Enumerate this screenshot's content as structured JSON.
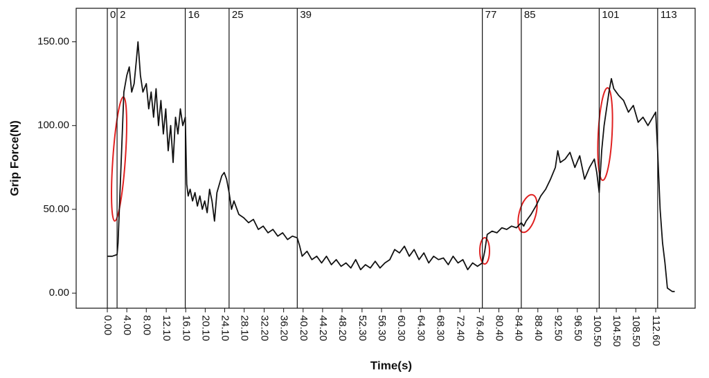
{
  "chart_data": {
    "type": "line",
    "xlabel": "Time(s)",
    "ylabel": "Grip Force(N)",
    "xlim": [
      -6.4,
      120.7
    ],
    "ylim": [
      -9,
      170
    ],
    "xticks": [
      {
        "value": 0,
        "label": "0.00"
      },
      {
        "value": 4,
        "label": "4.00"
      },
      {
        "value": 8,
        "label": "8.00"
      },
      {
        "value": 12.1,
        "label": "12.10"
      },
      {
        "value": 16.1,
        "label": "16.10"
      },
      {
        "value": 20.1,
        "label": "20.10"
      },
      {
        "value": 24.1,
        "label": "24.10"
      },
      {
        "value": 28.1,
        "label": "28.10"
      },
      {
        "value": 32.2,
        "label": "32.20"
      },
      {
        "value": 36.2,
        "label": "36.20"
      },
      {
        "value": 40.2,
        "label": "40.20"
      },
      {
        "value": 44.2,
        "label": "44.20"
      },
      {
        "value": 48.2,
        "label": "48.20"
      },
      {
        "value": 52.3,
        "label": "52.30"
      },
      {
        "value": 56.3,
        "label": "56.30"
      },
      {
        "value": 60.3,
        "label": "60.30"
      },
      {
        "value": 64.3,
        "label": "64.30"
      },
      {
        "value": 68.3,
        "label": "68.30"
      },
      {
        "value": 72.4,
        "label": "72.40"
      },
      {
        "value": 76.4,
        "label": "76.40"
      },
      {
        "value": 80.4,
        "label": "80.40"
      },
      {
        "value": 84.4,
        "label": "84.40"
      },
      {
        "value": 88.4,
        "label": "88.40"
      },
      {
        "value": 92.5,
        "label": "92.50"
      },
      {
        "value": 96.5,
        "label": "96.50"
      },
      {
        "value": 100.5,
        "label": "100.50"
      },
      {
        "value": 104.5,
        "label": "104.50"
      },
      {
        "value": 108.5,
        "label": "108.50"
      },
      {
        "value": 112.6,
        "label": "112.60"
      }
    ],
    "yticks": [
      {
        "value": 0,
        "label": "0.00"
      },
      {
        "value": 50,
        "label": "50.00"
      },
      {
        "value": 100,
        "label": "100.00"
      },
      {
        "value": 150,
        "label": "150.00"
      }
    ],
    "vlines": [
      0,
      2,
      16,
      25,
      39,
      77,
      85,
      101,
      113
    ],
    "x": [
      0,
      1,
      2,
      2.2,
      2.6,
      3,
      3.4,
      4,
      4.5,
      5,
      5.5,
      6,
      6.3,
      6.8,
      7.3,
      8,
      8.5,
      9,
      9.5,
      10,
      10.5,
      11,
      11.5,
      12,
      12.5,
      13,
      13.5,
      14,
      14.5,
      15,
      15.5,
      16,
      16.3,
      16.6,
      17,
      17.5,
      18,
      18.5,
      19,
      19.5,
      20,
      20.5,
      21,
      21.5,
      22,
      22.5,
      23,
      23.5,
      24,
      24.5,
      25,
      25.5,
      26,
      27,
      28,
      29,
      30,
      31,
      32,
      33,
      34,
      35,
      36,
      37,
      38,
      39,
      39.5,
      40,
      41,
      42,
      43,
      44,
      45,
      46,
      47,
      48,
      49,
      50,
      51,
      52,
      53,
      54,
      55,
      56,
      57,
      58,
      59,
      60,
      61,
      62,
      63,
      64,
      65,
      66,
      67,
      68,
      69,
      70,
      71,
      72,
      73,
      74,
      75,
      76,
      77,
      77.5,
      78,
      79,
      80,
      81,
      82,
      83,
      84,
      85,
      85.5,
      86,
      87,
      88,
      89,
      90,
      91,
      92,
      92.5,
      93,
      94,
      95,
      96,
      97,
      98,
      99,
      100,
      100.5,
      101,
      101.5,
      102,
      103,
      103.5,
      104,
      105,
      106,
      107,
      108,
      109,
      110,
      111,
      112,
      112.6,
      113,
      113.5,
      114,
      114.5,
      115,
      116,
      116.5
    ],
    "series": [
      {
        "color": "#111111",
        "values": [
          22,
          22,
          23,
          30,
          60,
          90,
          120,
          130,
          135,
          120,
          125,
          140,
          150,
          130,
          120,
          125,
          110,
          120,
          105,
          122,
          100,
          115,
          95,
          110,
          85,
          100,
          78,
          105,
          95,
          110,
          100,
          105,
          65,
          58,
          62,
          55,
          60,
          52,
          58,
          50,
          55,
          48,
          62,
          55,
          43,
          60,
          65,
          70,
          72,
          68,
          60,
          50,
          55,
          47,
          45,
          42,
          44,
          38,
          40,
          36,
          38,
          34,
          36,
          32,
          34,
          33,
          28,
          22,
          25,
          20,
          22,
          18,
          22,
          17,
          20,
          16,
          18,
          15,
          20,
          14,
          17,
          15,
          19,
          15,
          18,
          20,
          26,
          24,
          28,
          22,
          26,
          20,
          24,
          18,
          22,
          20,
          21,
          17,
          22,
          18,
          20,
          14,
          18,
          16,
          18,
          25,
          35,
          37,
          36,
          39,
          38,
          40,
          39,
          42,
          40,
          43,
          47,
          52,
          58,
          62,
          68,
          75,
          85,
          78,
          80,
          84,
          75,
          82,
          68,
          75,
          80,
          72,
          60,
          85,
          100,
          120,
          128,
          122,
          118,
          115,
          108,
          112,
          102,
          105,
          100,
          105,
          108,
          85,
          50,
          30,
          18,
          3,
          1,
          1
        ]
      }
    ]
  }
}
